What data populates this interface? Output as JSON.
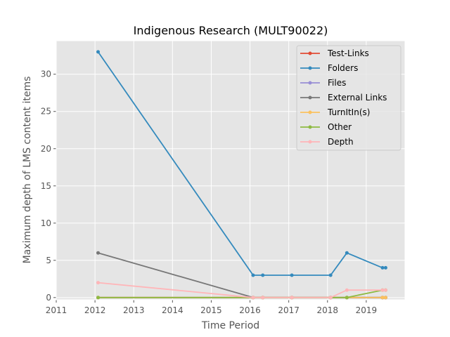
{
  "chart_data": {
    "type": "line",
    "title": "Indigenous Research (MULT90022)",
    "xlabel": "Time Period",
    "ylabel": "Maximum depth of LMS content items",
    "xlim": [
      2011,
      2020
    ],
    "ylim": [
      -0.3,
      34.5
    ],
    "xticks": [
      2011,
      2012,
      2013,
      2014,
      2015,
      2016,
      2017,
      2018,
      2019
    ],
    "yticks": [
      0,
      5,
      10,
      15,
      20,
      25,
      30
    ],
    "x": [
      2012.08,
      2016.08,
      2016.33,
      2017.08,
      2018.08,
      2018.5,
      2019.42,
      2019.5
    ],
    "grid": true,
    "legend_position": "upper right",
    "series": [
      {
        "name": "Test-Links",
        "color": "#E24A33",
        "values": [
          0,
          0,
          0,
          0,
          0,
          0,
          0,
          0
        ]
      },
      {
        "name": "Folders",
        "color": "#348ABD",
        "values": [
          33,
          3,
          3,
          3,
          3,
          6,
          4,
          4
        ]
      },
      {
        "name": "Files",
        "color": "#988ED5",
        "values": [
          0,
          0,
          0,
          0,
          0,
          0,
          0,
          0
        ]
      },
      {
        "name": "External Links",
        "color": "#777777",
        "values": [
          6,
          0,
          0,
          0,
          0,
          0,
          0,
          0
        ]
      },
      {
        "name": "TurnItIn(s)",
        "color": "#FBC15E",
        "values": [
          0,
          0,
          0,
          0,
          0,
          0,
          0,
          0
        ]
      },
      {
        "name": "Other",
        "color": "#8EBA42",
        "values": [
          0,
          0,
          0,
          0,
          0,
          0,
          1,
          1
        ]
      },
      {
        "name": "Depth",
        "color": "#FFB5B8",
        "values": [
          2,
          0,
          0,
          0,
          0,
          1,
          1,
          1
        ]
      }
    ]
  }
}
